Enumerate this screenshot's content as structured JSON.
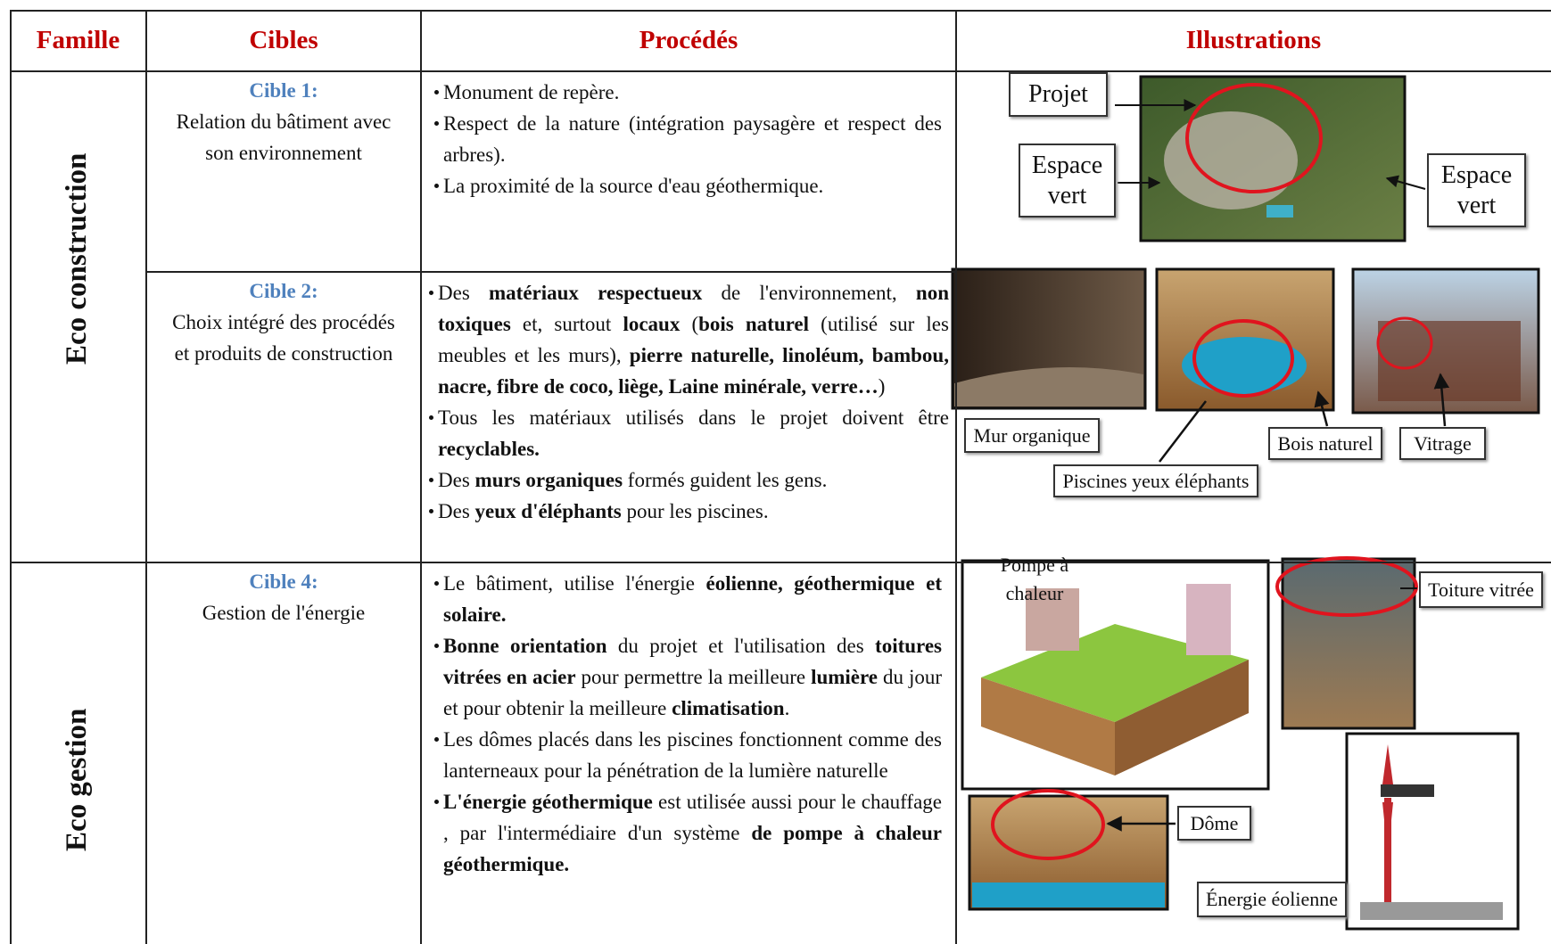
{
  "header": {
    "columns": [
      "Famille",
      "Cibles",
      "Procédés",
      "Illustrations"
    ]
  },
  "families": [
    {
      "name": "Eco construction",
      "targets": [
        {
          "title": "Cible 1:",
          "description": "Relation du bâtiment avec son environnement",
          "procedures": [
            [
              {
                "text": "Monument de repère."
              }
            ],
            [
              {
                "text": "Respect de la nature (intégration paysagère et respect des arbres)."
              }
            ],
            [
              {
                "text": "La proximité de la source d'eau géothermique."
              }
            ]
          ],
          "illustrations": [
            "Projet",
            "Espace vert",
            "Espace vert"
          ]
        },
        {
          "title": "Cible 2:",
          "description": "Choix intégré des procédés et produits de construction",
          "procedures": [
            [
              {
                "text": "Des "
              },
              {
                "text": "matériaux respectueux",
                "bold": true
              },
              {
                "text": " de l'environnement, "
              },
              {
                "text": "non toxiques",
                "bold": true
              },
              {
                "text": " et, surtout "
              },
              {
                "text": "locaux",
                "bold": true
              },
              {
                "text": " ("
              },
              {
                "text": "bois naturel",
                "bold": true
              },
              {
                "text": " (utilisé sur les meubles et les murs), "
              },
              {
                "text": "pierre naturelle, linoléum, bambou, nacre, fibre de coco, liège, Laine minérale, verre…",
                "bold": true
              },
              {
                "text": ")"
              }
            ],
            [
              {
                "text": "Tous les matériaux utilisés dans le projet doivent être "
              },
              {
                "text": "recyclables.",
                "bold": true
              }
            ],
            [
              {
                "text": "Des "
              },
              {
                "text": "murs organiques",
                "bold": true
              },
              {
                "text": " formés guident les gens."
              }
            ],
            [
              {
                "text": "Des "
              },
              {
                "text": "yeux d'éléphants",
                "bold": true
              },
              {
                "text": " pour les piscines."
              }
            ]
          ],
          "illustrations": [
            "Mur organique",
            "Piscines yeux éléphants",
            "Bois naturel",
            "Vitrage"
          ]
        }
      ]
    },
    {
      "name": "Eco gestion",
      "targets": [
        {
          "title": "Cible 4:",
          "description": "Gestion de l'énergie",
          "procedures": [
            [
              {
                "text": "Le bâtiment, utilise l'énergie "
              },
              {
                "text": "éolienne, géothermique et solaire.",
                "bold": true
              }
            ],
            [
              {
                "text": "Bonne orientation",
                "bold": true
              },
              {
                "text": " du projet et l'utilisation des "
              },
              {
                "text": "toitures vitrées en acier",
                "bold": true
              },
              {
                "text": " pour permettre la meilleure "
              },
              {
                "text": "lumière",
                "bold": true
              },
              {
                "text": " du jour et pour obtenir la meilleure "
              },
              {
                "text": "climatisation",
                "bold": true
              },
              {
                "text": "."
              }
            ],
            [
              {
                "text": "Les dômes placés dans les piscines fonctionnent comme des lanterneaux pour la pénétration de la lumière naturelle"
              }
            ],
            [
              {
                "text": "L'énergie géothermique",
                "bold": true
              },
              {
                "text": " est utilisée aussi pour le chauffage , par l'intermédiaire d'un système "
              },
              {
                "text": "de pompe à chaleur géothermique.",
                "bold": true
              }
            ]
          ],
          "illustrations": [
            "Pompe à chaleur",
            "Toiture vitrée",
            "Dôme",
            "Énergie éolienne"
          ]
        }
      ]
    }
  ]
}
